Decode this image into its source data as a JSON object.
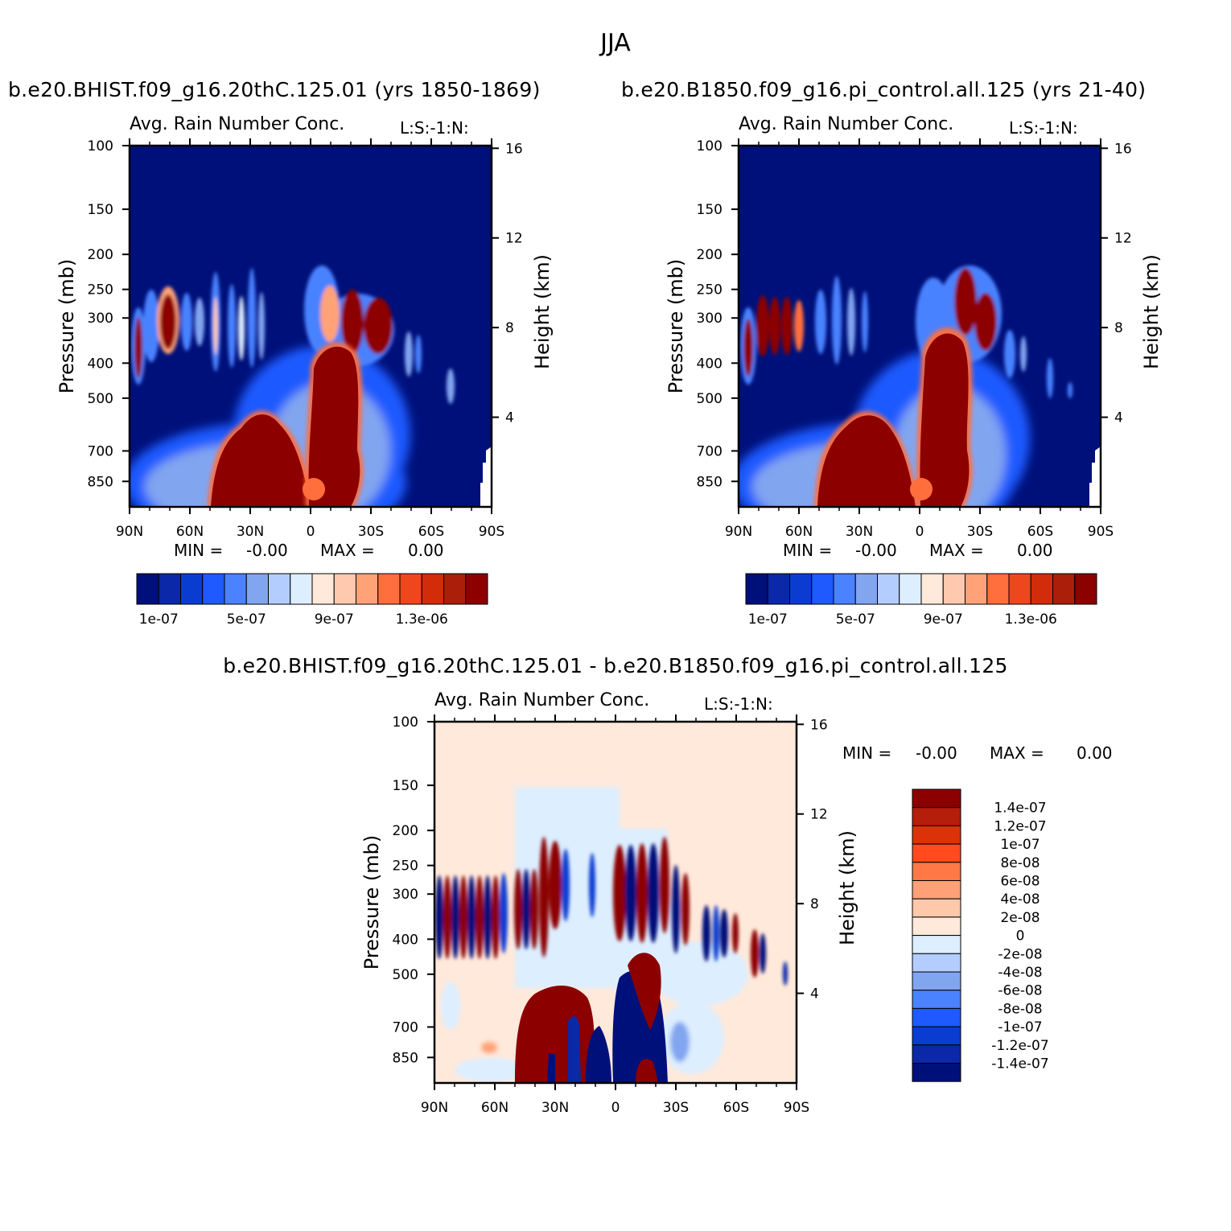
{
  "figure_title": "JJA",
  "chart_data": [
    {
      "type": "heatmap",
      "name": "case",
      "subtitle": "b.e20.BHIST.f09_g16.20thC.125.01 (yrs 1850-1869)",
      "title_left": "Avg. Rain Number Conc.",
      "title_right": "L:S:-1:N:",
      "ylabel": "Pressure (mb)",
      "ylabel_right": "Height (km)",
      "x_ticks": [
        "90N",
        "60N",
        "30N",
        "0",
        "30S",
        "60S",
        "90S"
      ],
      "x_values": [
        90,
        60,
        30,
        0,
        -30,
        -60,
        -90
      ],
      "y_ticks": [
        "100",
        "150",
        "200",
        "250",
        "300",
        "400",
        "500",
        "700",
        "850"
      ],
      "y_values": [
        100,
        150,
        200,
        250,
        300,
        400,
        500,
        700,
        850
      ],
      "ylim": [
        100,
        1000
      ],
      "height_ticks": [
        "16",
        "12",
        "8",
        "4"
      ],
      "height_values": [
        16,
        12,
        8,
        4
      ],
      "min_label": "MIN =",
      "min_value": "-0.00",
      "max_label": "MAX =",
      "max_value": "0.00",
      "colorbar_levels": 16,
      "colorbar_labels": [
        "1e-07",
        "5e-07",
        "9e-07",
        "1.3e-06"
      ],
      "colors": [
        "#00107a",
        "#0a28a8",
        "#0a3cd2",
        "#1e5aff",
        "#4a82ff",
        "#82a5f0",
        "#b4cdff",
        "#dceeff",
        "#ffe9da",
        "#ffc9b0",
        "#ffa278",
        "#ff6e3c",
        "#f0461e",
        "#d22c0a",
        "#aa1e0a",
        "#8c0000"
      ],
      "features": [
        {
          "region": "NH low-level rain maximum",
          "lat_range": [
            48,
            5
          ],
          "p_top": 500,
          "level": 15
        },
        {
          "region": "Tropical convection column",
          "lat_range": [
            5,
            -20
          ],
          "p_top": 250,
          "level": 15
        },
        {
          "region": "High-latitude upper bands",
          "lat_range": [
            90,
            45
          ],
          "p_top": 260,
          "p_bottom": 420,
          "level": 14
        }
      ]
    },
    {
      "type": "heatmap",
      "name": "control",
      "subtitle": "b.e20.B1850.f09_g16.pi_control.all.125 (yrs 21-40)",
      "title_left": "Avg. Rain Number Conc.",
      "title_right": "L:S:-1:N:",
      "ylabel": "Pressure (mb)",
      "ylabel_right": "Height (km)",
      "x_ticks": [
        "90N",
        "60N",
        "30N",
        "0",
        "30S",
        "60S",
        "90S"
      ],
      "y_ticks": [
        "100",
        "150",
        "200",
        "250",
        "300",
        "400",
        "500",
        "700",
        "850"
      ],
      "height_ticks": [
        "16",
        "12",
        "8",
        "4"
      ],
      "min_label": "MIN =",
      "min_value": "-0.00",
      "max_label": "MAX =",
      "max_value": "0.00",
      "colorbar_levels": 16,
      "colorbar_labels": [
        "1e-07",
        "5e-07",
        "9e-07",
        "1.3e-06"
      ]
    },
    {
      "type": "heatmap",
      "name": "difference",
      "subtitle": "b.e20.BHIST.f09_g16.20thC.125.01 - b.e20.B1850.f09_g16.pi_control.all.125",
      "title_left": "Avg. Rain Number Conc.",
      "title_right": "L:S:-1:N:",
      "ylabel": "Pressure (mb)",
      "ylabel_right": "Height (km)",
      "x_ticks": [
        "90N",
        "60N",
        "30N",
        "0",
        "30S",
        "60S",
        "90S"
      ],
      "y_ticks": [
        "100",
        "150",
        "200",
        "250",
        "300",
        "400",
        "500",
        "700",
        "850"
      ],
      "height_ticks": [
        "16",
        "12",
        "8",
        "4"
      ],
      "min_label": "MIN =",
      "min_value": "-0.00",
      "max_label": "MAX =",
      "max_value": "0.00",
      "colorbar_labels": [
        "1.4e-07",
        "1.2e-07",
        "1e-07",
        "8e-08",
        "6e-08",
        "4e-08",
        "2e-08",
        "0",
        "-2e-08",
        "-4e-08",
        "-6e-08",
        "-8e-08",
        "-1e-07",
        "-1.2e-07",
        "-1.4e-07"
      ],
      "colors": [
        "#8c0000",
        "#b41e0a",
        "#dc320a",
        "#ff4b1e",
        "#ff7846",
        "#ffa078",
        "#ffc8aa",
        "#ffe9da",
        "#dceeff",
        "#b4cdff",
        "#82a5f0",
        "#4a82ff",
        "#1e5aff",
        "#0a3cd2",
        "#0a28a8",
        "#00107a"
      ]
    }
  ]
}
